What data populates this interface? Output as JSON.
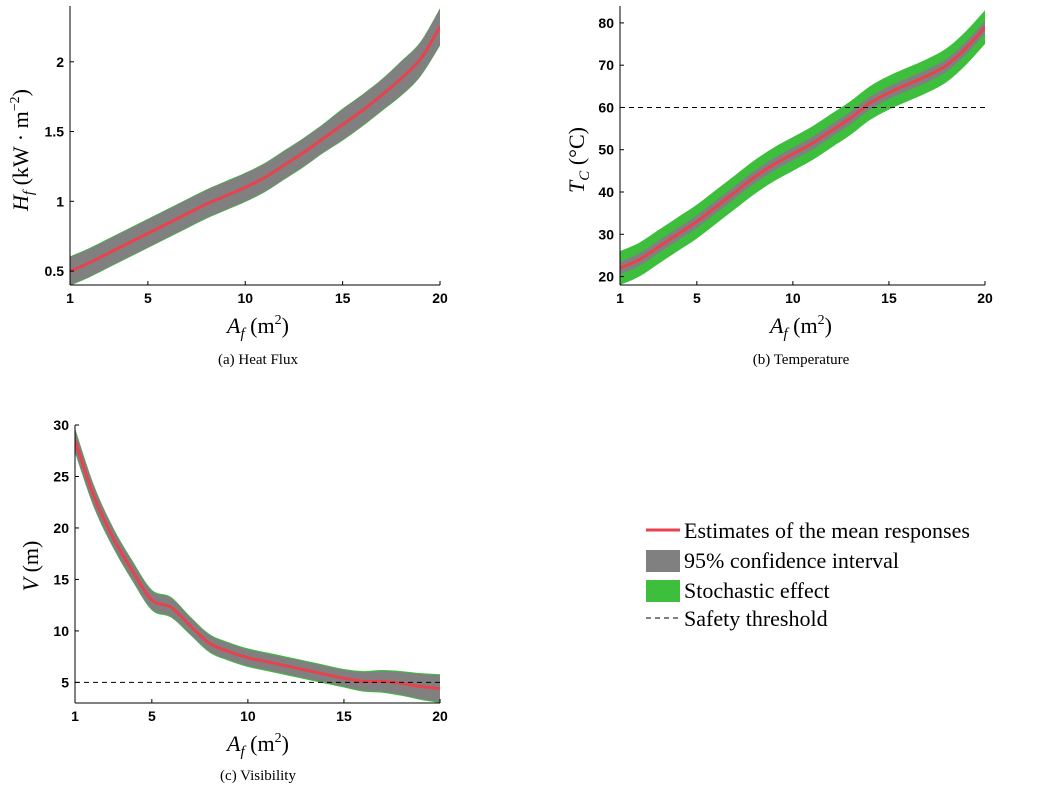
{
  "colors": {
    "mean": "#e8424d",
    "ci": "#808080",
    "stochastic": "#3dbf3d",
    "threshold": "#000000"
  },
  "legend": {
    "mean_label": "Estimates of the mean responses",
    "ci_label": "95% confidence interval",
    "stochastic_label": "Stochastic effect",
    "threshold_label": "Safety threshold"
  },
  "chart_data": [
    {
      "type": "area",
      "caption": "(a) Heat Flux",
      "xlabel": "A_f (m^2)",
      "ylabel": "H_f (kW·m^-2)",
      "xlim": [
        1,
        20
      ],
      "ylim": [
        0.4,
        2.4
      ],
      "xticks": [
        1,
        5,
        10,
        15,
        20
      ],
      "yticks": [
        0.5,
        1,
        1.5,
        2
      ],
      "ytick_labels": [
        "0.5",
        "1",
        "1.5",
        "2"
      ],
      "x": [
        1,
        2,
        3,
        4,
        5,
        6,
        7,
        8,
        9,
        10,
        11,
        12,
        13,
        14,
        15,
        16,
        17,
        18,
        19,
        20
      ],
      "mean": [
        0.5,
        0.56,
        0.63,
        0.7,
        0.77,
        0.84,
        0.91,
        0.98,
        1.04,
        1.1,
        1.17,
        1.26,
        1.35,
        1.45,
        1.55,
        1.65,
        1.76,
        1.88,
        2.02,
        2.25
      ],
      "ci_half": [
        0.1,
        0.1,
        0.1,
        0.1,
        0.1,
        0.1,
        0.1,
        0.1,
        0.1,
        0.1,
        0.1,
        0.1,
        0.1,
        0.1,
        0.11,
        0.11,
        0.11,
        0.12,
        0.12,
        0.13
      ],
      "stoch_half": [
        0.105,
        0.105,
        0.105,
        0.105,
        0.105,
        0.105,
        0.105,
        0.105,
        0.105,
        0.105,
        0.105,
        0.105,
        0.105,
        0.105,
        0.115,
        0.115,
        0.115,
        0.125,
        0.125,
        0.135
      ],
      "threshold": null
    },
    {
      "type": "area",
      "caption": "(b) Temperature",
      "xlabel": "A_f (m^2)",
      "ylabel": "T_C (°C)",
      "xlim": [
        1,
        20
      ],
      "ylim": [
        18,
        84
      ],
      "xticks": [
        1,
        5,
        10,
        15,
        20
      ],
      "yticks": [
        20,
        30,
        40,
        50,
        60,
        70,
        80
      ],
      "ytick_labels": [
        "20",
        "30",
        "40",
        "50",
        "60",
        "70",
        "80"
      ],
      "x": [
        1,
        2,
        3,
        4,
        5,
        6,
        7,
        8,
        9,
        10,
        11,
        12,
        13,
        14,
        15,
        16,
        17,
        18,
        19,
        20
      ],
      "mean": [
        22,
        24,
        27,
        30,
        33,
        36.5,
        40,
        43.5,
        46.5,
        49,
        51.5,
        54.5,
        57.5,
        61,
        63.5,
        65.5,
        67.5,
        70,
        74,
        79
      ],
      "ci_half": [
        1.5,
        1.5,
        1.5,
        1.5,
        1.5,
        1.5,
        1.5,
        1.5,
        1.5,
        1.5,
        1.5,
        1.5,
        1.5,
        1.5,
        1.5,
        1.5,
        1.5,
        1.5,
        1.5,
        1.5
      ],
      "stoch_half": [
        4,
        4,
        4,
        4,
        4,
        4,
        4,
        4,
        4,
        4,
        4,
        4,
        4,
        4,
        4,
        4,
        4,
        4,
        4,
        4
      ],
      "threshold": 60
    },
    {
      "type": "area",
      "caption": "(c) Visibility",
      "xlabel": "A_f (m^2)",
      "ylabel": "V (m)",
      "xlim": [
        1,
        20
      ],
      "ylim": [
        3,
        30
      ],
      "xticks": [
        1,
        5,
        10,
        15,
        20
      ],
      "yticks": [
        5,
        10,
        15,
        20,
        25,
        30
      ],
      "ytick_labels": [
        "5",
        "10",
        "15",
        "20",
        "25",
        "30"
      ],
      "x": [
        1,
        2,
        3,
        4,
        5,
        6,
        7,
        8,
        9,
        10,
        11,
        12,
        13,
        14,
        15,
        16,
        17,
        18,
        19,
        20
      ],
      "mean": [
        28.5,
        23,
        19,
        15.8,
        13,
        12.3,
        10.5,
        8.8,
        8.0,
        7.4,
        7.0,
        6.6,
        6.2,
        5.8,
        5.4,
        5.1,
        5.1,
        4.9,
        4.6,
        4.4
      ],
      "ci_half": [
        1.1,
        1.0,
        0.9,
        0.9,
        0.9,
        0.9,
        0.8,
        0.8,
        0.8,
        0.8,
        0.8,
        0.8,
        0.8,
        0.8,
        0.8,
        0.9,
        1.0,
        1.1,
        1.2,
        1.3
      ],
      "stoch_half": [
        1.2,
        1.1,
        1.0,
        1.0,
        1.0,
        1.0,
        0.9,
        0.9,
        0.9,
        0.9,
        0.9,
        0.9,
        0.9,
        0.9,
        0.9,
        1.0,
        1.1,
        1.2,
        1.3,
        1.4
      ],
      "threshold": 5
    }
  ]
}
